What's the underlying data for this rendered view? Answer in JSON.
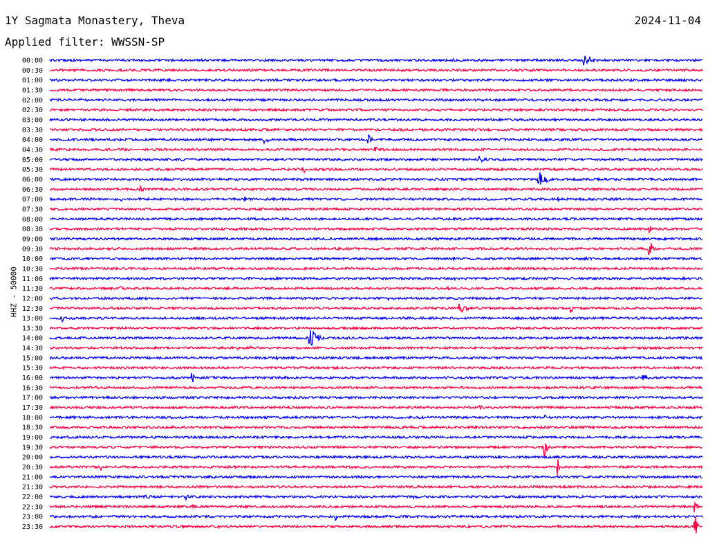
{
  "header": {
    "station": "1Y Sagmata Monastery, Theva",
    "filter": "Applied filter: WWSSN-SP",
    "date": "2024-11-04"
  },
  "chart_data": {
    "type": "line",
    "title": "1Y Sagmata Monastery, Theva",
    "subtitle": "Applied filter: WWSSN-SP",
    "date": "2024-11-04",
    "ylabel": "HHZ - 50000",
    "traces": [
      {
        "label": "00:00",
        "color": "#0000ff",
        "events": [
          [
            0.62,
            0.6,
            0.3
          ],
          [
            0.82,
            2.2,
            2.5
          ]
        ]
      },
      {
        "label": "00:30",
        "color": "#ff0040",
        "events": []
      },
      {
        "label": "01:00",
        "color": "#0000ff",
        "events": [
          [
            0.97,
            0.3,
            1.5
          ]
        ]
      },
      {
        "label": "01:30",
        "color": "#ff0040",
        "events": []
      },
      {
        "label": "02:00",
        "color": "#0000ff",
        "events": [
          [
            0.88,
            0.5,
            2.0
          ]
        ]
      },
      {
        "label": "02:30",
        "color": "#ff0040",
        "events": []
      },
      {
        "label": "03:00",
        "color": "#0000ff",
        "events": []
      },
      {
        "label": "03:30",
        "color": "#ff0040",
        "events": []
      },
      {
        "label": "04:00",
        "color": "#0000ff",
        "events": [
          [
            0.25,
            0.5,
            1.2
          ],
          [
            0.33,
            1.2,
            1.5
          ],
          [
            0.49,
            1.5,
            1.5
          ],
          [
            0.9,
            0.4,
            1.5
          ]
        ]
      },
      {
        "label": "04:30",
        "color": "#ff0040",
        "events": [
          [
            0.5,
            1.0,
            0.8
          ]
        ]
      },
      {
        "label": "05:00",
        "color": "#0000ff",
        "events": [
          [
            0.66,
            1.2,
            2.0
          ]
        ]
      },
      {
        "label": "05:30",
        "color": "#ff0040",
        "events": [
          [
            0.39,
            1.0,
            0.6
          ]
        ]
      },
      {
        "label": "06:00",
        "color": "#0000ff",
        "events": [
          [
            0.75,
            2.6,
            2.5
          ]
        ]
      },
      {
        "label": "06:30",
        "color": "#ff0040",
        "events": [
          [
            0.14,
            1.0,
            1.5
          ],
          [
            0.51,
            0.6,
            0.2
          ]
        ]
      },
      {
        "label": "07:00",
        "color": "#0000ff",
        "events": [
          [
            0.11,
            0.6,
            0.2
          ],
          [
            0.3,
            0.8,
            0.2
          ],
          [
            0.78,
            0.8,
            0.2
          ]
        ]
      },
      {
        "label": "07:30",
        "color": "#ff0040",
        "events": []
      },
      {
        "label": "08:00",
        "color": "#0000ff",
        "events": []
      },
      {
        "label": "08:30",
        "color": "#ff0040",
        "events": [
          [
            0.13,
            0.6,
            0.2
          ],
          [
            0.92,
            1.5,
            0.2
          ]
        ]
      },
      {
        "label": "09:00",
        "color": "#0000ff",
        "events": [
          [
            0.73,
            0.5,
            2.0
          ]
        ]
      },
      {
        "label": "09:30",
        "color": "#ff0040",
        "events": [
          [
            0.92,
            2.8,
            0.8
          ]
        ]
      },
      {
        "label": "10:00",
        "color": "#0000ff",
        "events": [
          [
            0.62,
            0.6,
            1.0
          ],
          [
            0.72,
            0.5,
            2.0
          ],
          [
            0.82,
            0.7,
            2.0
          ]
        ]
      },
      {
        "label": "10:30",
        "color": "#ff0040",
        "events": [
          [
            0.96,
            0.6,
            0.5
          ]
        ]
      },
      {
        "label": "11:00",
        "color": "#0000ff",
        "events": [
          [
            0.62,
            0.8,
            0.5
          ]
        ]
      },
      {
        "label": "11:30",
        "color": "#ff0040",
        "events": [
          [
            0.11,
            0.7,
            0.2
          ],
          [
            0.61,
            0.8,
            1.2
          ]
        ]
      },
      {
        "label": "12:00",
        "color": "#0000ff",
        "events": [
          [
            0.52,
            0.6,
            0.2
          ]
        ]
      },
      {
        "label": "12:30",
        "color": "#ff0040",
        "events": [
          [
            0.63,
            2.2,
            2.0
          ],
          [
            0.8,
            1.4,
            0.2
          ]
        ]
      },
      {
        "label": "13:00",
        "color": "#0000ff",
        "events": [
          [
            0.02,
            1.3,
            0.2
          ],
          [
            0.85,
            0.5,
            0.5
          ]
        ]
      },
      {
        "label": "13:30",
        "color": "#ff0040",
        "events": []
      },
      {
        "label": "14:00",
        "color": "#0000ff",
        "events": [
          [
            0.4,
            3.0,
            2.5
          ]
        ]
      },
      {
        "label": "14:30",
        "color": "#ff0040",
        "events": [
          [
            0.29,
            0.6,
            0.2
          ],
          [
            0.31,
            0.6,
            0.2
          ]
        ]
      },
      {
        "label": "15:00",
        "color": "#0000ff",
        "events": [
          [
            0.35,
            0.6,
            0.5
          ]
        ]
      },
      {
        "label": "15:30",
        "color": "#ff0040",
        "events": [
          [
            0.98,
            0.7,
            0.2
          ]
        ]
      },
      {
        "label": "16:00",
        "color": "#0000ff",
        "events": [
          [
            0.22,
            1.5,
            0.7
          ],
          [
            0.91,
            1.0,
            2.0
          ]
        ]
      },
      {
        "label": "16:30",
        "color": "#ff0040",
        "events": [
          [
            0.66,
            0.6,
            1.0
          ]
        ]
      },
      {
        "label": "17:00",
        "color": "#0000ff",
        "events": []
      },
      {
        "label": "17:30",
        "color": "#ff0040",
        "events": [
          [
            0.66,
            1.0,
            0.5
          ],
          [
            0.89,
            0.5,
            0.5
          ]
        ]
      },
      {
        "label": "18:00",
        "color": "#0000ff",
        "events": [
          [
            0.76,
            1.5,
            0.2
          ]
        ]
      },
      {
        "label": "18:30",
        "color": "#ff0040",
        "events": []
      },
      {
        "label": "19:00",
        "color": "#0000ff",
        "events": [
          [
            0.03,
            0.5,
            3.0
          ]
        ]
      },
      {
        "label": "19:30",
        "color": "#ff0040",
        "events": [
          [
            0.76,
            3.2,
            0.5
          ]
        ]
      },
      {
        "label": "20:00",
        "color": "#0000ff",
        "events": []
      },
      {
        "label": "20:30",
        "color": "#ff0040",
        "events": [
          [
            0.08,
            1.0,
            0.2
          ],
          [
            0.78,
            3.0,
            0.4
          ]
        ]
      },
      {
        "label": "21:00",
        "color": "#0000ff",
        "events": []
      },
      {
        "label": "21:30",
        "color": "#ff0040",
        "events": []
      },
      {
        "label": "22:00",
        "color": "#0000ff",
        "events": [
          [
            0.15,
            0.6,
            1.0
          ],
          [
            0.21,
            1.0,
            1.0
          ],
          [
            0.56,
            0.6,
            2.5
          ]
        ]
      },
      {
        "label": "22:30",
        "color": "#ff0040",
        "events": [
          [
            0.22,
            0.7,
            0.5
          ],
          [
            0.99,
            3.5,
            0.3
          ]
        ]
      },
      {
        "label": "23:00",
        "color": "#0000ff",
        "events": [
          [
            0.44,
            1.3,
            0.3
          ]
        ]
      },
      {
        "label": "23:30",
        "color": "#ff0040",
        "events": [
          [
            0.26,
            0.5,
            0.5
          ],
          [
            0.78,
            0.8,
            0.3
          ],
          [
            0.99,
            3.5,
            0.5
          ]
        ]
      }
    ]
  }
}
